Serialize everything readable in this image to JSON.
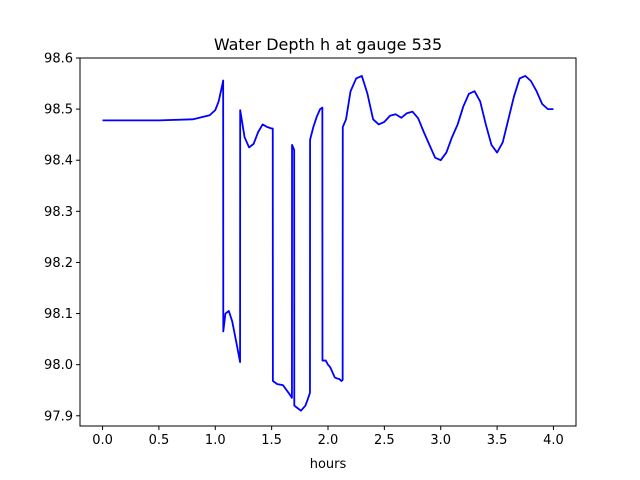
{
  "chart_data": {
    "type": "line",
    "title": "Water Depth h at gauge 535",
    "xlabel": "hours",
    "ylabel": "",
    "xlim": [
      -0.2,
      4.2
    ],
    "ylim": [
      97.88,
      98.6
    ],
    "xticks": [
      0.0,
      0.5,
      1.0,
      1.5,
      2.0,
      2.5,
      3.0,
      3.5,
      4.0
    ],
    "xtick_labels": [
      "0.0",
      "0.5",
      "1.0",
      "1.5",
      "2.0",
      "2.5",
      "3.0",
      "3.5",
      "4.0"
    ],
    "yticks": [
      97.9,
      98.0,
      98.1,
      98.2,
      98.3,
      98.4,
      98.5,
      98.6
    ],
    "ytick_labels": [
      "97.9",
      "98.0",
      "98.1",
      "98.2",
      "98.3",
      "98.4",
      "98.5",
      "98.6"
    ],
    "grid": false,
    "series": [
      {
        "color": "#0000ff",
        "x": [
          0.0,
          0.5,
          0.8,
          0.95,
          1.0,
          1.03,
          1.06,
          1.07,
          1.071,
          1.09,
          1.12,
          1.15,
          1.19,
          1.22,
          1.221,
          1.26,
          1.3,
          1.34,
          1.38,
          1.42,
          1.46,
          1.5,
          1.51,
          1.511,
          1.55,
          1.6,
          1.65,
          1.68,
          1.681,
          1.7,
          1.701,
          1.73,
          1.76,
          1.8,
          1.82,
          1.84,
          1.841,
          1.87,
          1.9,
          1.93,
          1.95,
          1.951,
          1.98,
          2.0,
          2.02,
          2.04,
          2.06,
          2.08,
          2.1,
          2.12,
          2.13,
          2.131,
          2.16,
          2.2,
          2.25,
          2.3,
          2.35,
          2.4,
          2.45,
          2.5,
          2.55,
          2.6,
          2.65,
          2.7,
          2.75,
          2.8,
          2.85,
          2.9,
          2.95,
          3.0,
          3.05,
          3.1,
          3.15,
          3.2,
          3.25,
          3.3,
          3.35,
          3.4,
          3.45,
          3.5,
          3.55,
          3.6,
          3.65,
          3.7,
          3.75,
          3.8,
          3.85,
          3.9,
          3.95,
          4.0
        ],
        "y": [
          98.478,
          98.478,
          98.48,
          98.488,
          98.498,
          98.515,
          98.545,
          98.556,
          98.065,
          98.1,
          98.105,
          98.085,
          98.04,
          98.005,
          98.498,
          98.445,
          98.425,
          98.432,
          98.455,
          98.47,
          98.465,
          98.462,
          98.462,
          97.968,
          97.962,
          97.96,
          97.945,
          97.935,
          98.43,
          98.42,
          97.92,
          97.915,
          97.91,
          97.92,
          97.932,
          97.945,
          98.44,
          98.465,
          98.485,
          98.5,
          98.503,
          98.008,
          98.008,
          98.0,
          97.995,
          97.985,
          97.975,
          97.973,
          97.972,
          97.968,
          97.97,
          98.465,
          98.48,
          98.535,
          98.56,
          98.565,
          98.53,
          98.48,
          98.47,
          98.475,
          98.487,
          98.49,
          98.483,
          98.492,
          98.495,
          98.482,
          98.455,
          98.43,
          98.405,
          98.4,
          98.415,
          98.445,
          98.47,
          98.505,
          98.53,
          98.535,
          98.515,
          98.47,
          98.43,
          98.415,
          98.435,
          98.48,
          98.525,
          98.56,
          98.565,
          98.555,
          98.535,
          98.51,
          98.5,
          98.5
        ]
      }
    ]
  }
}
